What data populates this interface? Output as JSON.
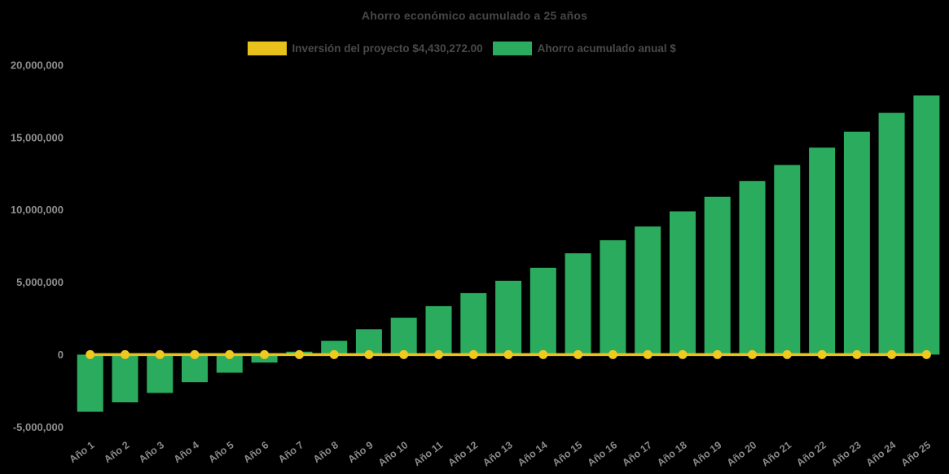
{
  "page": {
    "background_color": "#000000"
  },
  "header": {
    "title": "Ahorro económico acumulado a 25 años"
  },
  "legend": {
    "position": "top",
    "items": [
      {
        "series": "investment-line",
        "label": "Inversión del proyecto $4,430,272.00",
        "color": "#E8C21B"
      },
      {
        "series": "savings-bars",
        "label": "Ahorro acumulado anual $",
        "color": "#2BAB5E"
      }
    ]
  },
  "chart_data": {
    "type": "bar",
    "title": "Ahorro económico acumulado a 25 años",
    "xlabel": "",
    "ylabel": "",
    "categories": [
      "Año 1",
      "Año 2",
      "Año 3",
      "Año 4",
      "Año 5",
      "Año 6",
      "Año 7",
      "Año 8",
      "Año 9",
      "Año 10",
      "Año 11",
      "Año 12",
      "Año 13",
      "Año 14",
      "Año 15",
      "Año 16",
      "Año 17",
      "Año 18",
      "Año 19",
      "Año 20",
      "Año 21",
      "Año 22",
      "Año 23",
      "Año 24",
      "Año 25"
    ],
    "series": [
      {
        "name": "Inversión del proyecto $4,430,272.00",
        "type": "line",
        "color": "#E8C21B",
        "marker": "circle",
        "marker_color": "#EFC91F",
        "plotted_value": 0,
        "values": [
          0,
          0,
          0,
          0,
          0,
          0,
          0,
          0,
          0,
          0,
          0,
          0,
          0,
          0,
          0,
          0,
          0,
          0,
          0,
          0,
          0,
          0,
          0,
          0,
          0
        ]
      },
      {
        "name": "Ahorro acumulado anual $",
        "type": "bar",
        "color": "#2BAB5E",
        "values": [
          -3950000,
          -3300000,
          -2650000,
          -1900000,
          -1250000,
          -550000,
          200000,
          950000,
          1750000,
          2550000,
          3350000,
          4250000,
          5100000,
          6000000,
          7000000,
          7900000,
          8850000,
          9900000,
          10900000,
          12000000,
          13100000,
          14300000,
          15400000,
          16700000,
          17900000
        ]
      }
    ],
    "investment_amount_shown_in_legend": 4430272.0,
    "ylim": [
      -5000000,
      20000000
    ],
    "y_ticks": [
      20000000,
      15000000,
      10000000,
      5000000,
      0,
      -5000000
    ],
    "y_tick_labels": [
      "20,000,000",
      "15,000,000",
      "10,000,000",
      "5,000,000",
      "0",
      "-5,000,000"
    ],
    "x_tick_rotation_deg": -37,
    "grid": false,
    "legend_position": "top",
    "colors": {
      "title_text": "#474747",
      "legend_text": "#4a4a4a",
      "axis_tick_text": "#8f8f8f",
      "background": "#000000"
    }
  }
}
